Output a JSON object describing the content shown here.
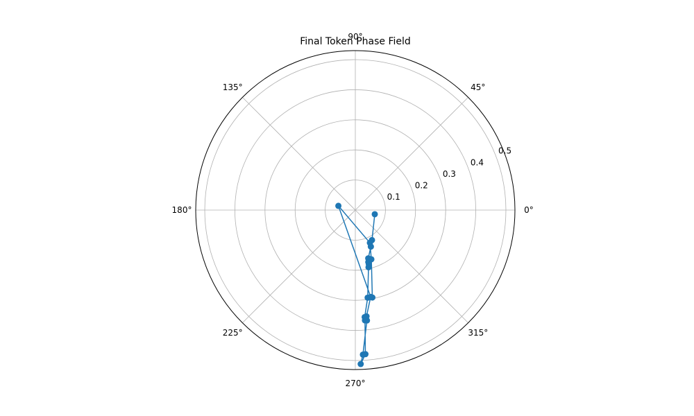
{
  "chart_data": {
    "type": "line",
    "projection": "polar",
    "title": "Final Token Phase Field",
    "theta_tick_labels": [
      "0°",
      "45°",
      "90°",
      "135°",
      "180°",
      "225°",
      "270°",
      "315°"
    ],
    "theta_ticks_deg": [
      0,
      45,
      90,
      135,
      180,
      225,
      270,
      315
    ],
    "r_tick_labels": [
      "0.1",
      "0.2",
      "0.3",
      "0.4",
      "0.5"
    ],
    "r_ticks": [
      0.1,
      0.2,
      0.3,
      0.4,
      0.5
    ],
    "rlim": [
      0,
      0.53
    ],
    "grid": true,
    "markers": true,
    "series": [
      {
        "color": "#1f77b4",
        "points": [
          {
            "theta_deg": 348,
            "r": 0.066
          },
          {
            "theta_deg": 299,
            "r": 0.114
          },
          {
            "theta_deg": 293,
            "r": 0.132
          },
          {
            "theta_deg": 285,
            "r": 0.166
          },
          {
            "theta_deg": 284,
            "r": 0.178
          },
          {
            "theta_deg": 284,
            "r": 0.185
          },
          {
            "theta_deg": 283,
            "r": 0.195
          },
          {
            "theta_deg": 278,
            "r": 0.294
          },
          {
            "theta_deg": 275,
            "r": 0.357
          },
          {
            "theta_deg": 276,
            "r": 0.369
          },
          {
            "theta_deg": 273,
            "r": 0.481
          },
          {
            "theta_deg": 272,
            "r": 0.512
          },
          {
            "theta_deg": 274,
            "r": 0.48
          },
          {
            "theta_deg": 275,
            "r": 0.368
          },
          {
            "theta_deg": 276,
            "r": 0.355
          },
          {
            "theta_deg": 280,
            "r": 0.293
          },
          {
            "theta_deg": 166,
            "r": 0.058
          },
          {
            "theta_deg": 294,
            "r": 0.119
          },
          {
            "theta_deg": 288,
            "r": 0.172
          },
          {
            "theta_deg": 281,
            "r": 0.296
          }
        ]
      }
    ]
  }
}
